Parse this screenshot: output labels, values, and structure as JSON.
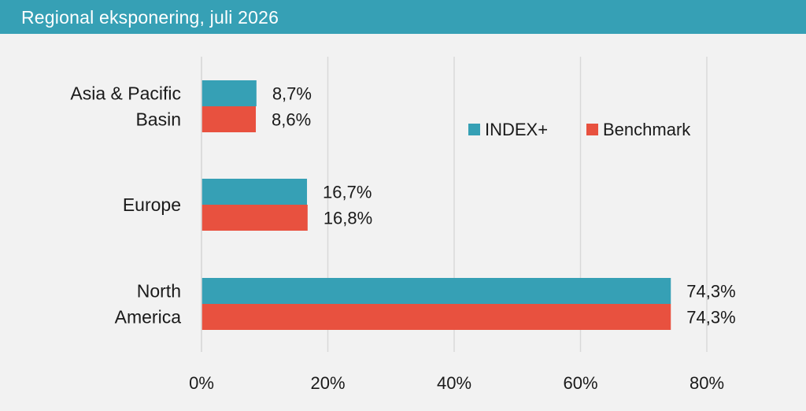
{
  "header": {
    "title": "Regional eksponering, juli 2026"
  },
  "colors": {
    "header_bg": "#36a0b5",
    "series_1": "#36a0b5",
    "series_2": "#e8513f",
    "background": "#f2f2f2",
    "grid": "#d9d9d9"
  },
  "chart_data": {
    "type": "bar",
    "orientation": "horizontal",
    "title": "Regional eksponering, juli 2026",
    "categories": [
      [
        "Asia & Pacific",
        "Basin"
      ],
      [
        "Europe"
      ],
      [
        "North",
        "America"
      ]
    ],
    "series": [
      {
        "name": "INDEX+",
        "values": [
          8.7,
          16.7,
          74.3
        ],
        "labels": [
          "8,7%",
          "16,7%",
          "74,3%"
        ],
        "color": "#36a0b5"
      },
      {
        "name": "Benchmark",
        "values": [
          8.6,
          16.8,
          74.3
        ],
        "labels": [
          "8,6%",
          "16,8%",
          "74,3%"
        ],
        "color": "#e8513f"
      }
    ],
    "xlim": [
      0,
      80
    ],
    "x_ticks": [
      0,
      20,
      40,
      60,
      80
    ],
    "x_tick_labels": [
      "0%",
      "20%",
      "40%",
      "60%",
      "80%"
    ],
    "grid": "vertical",
    "legend": "top-right"
  }
}
